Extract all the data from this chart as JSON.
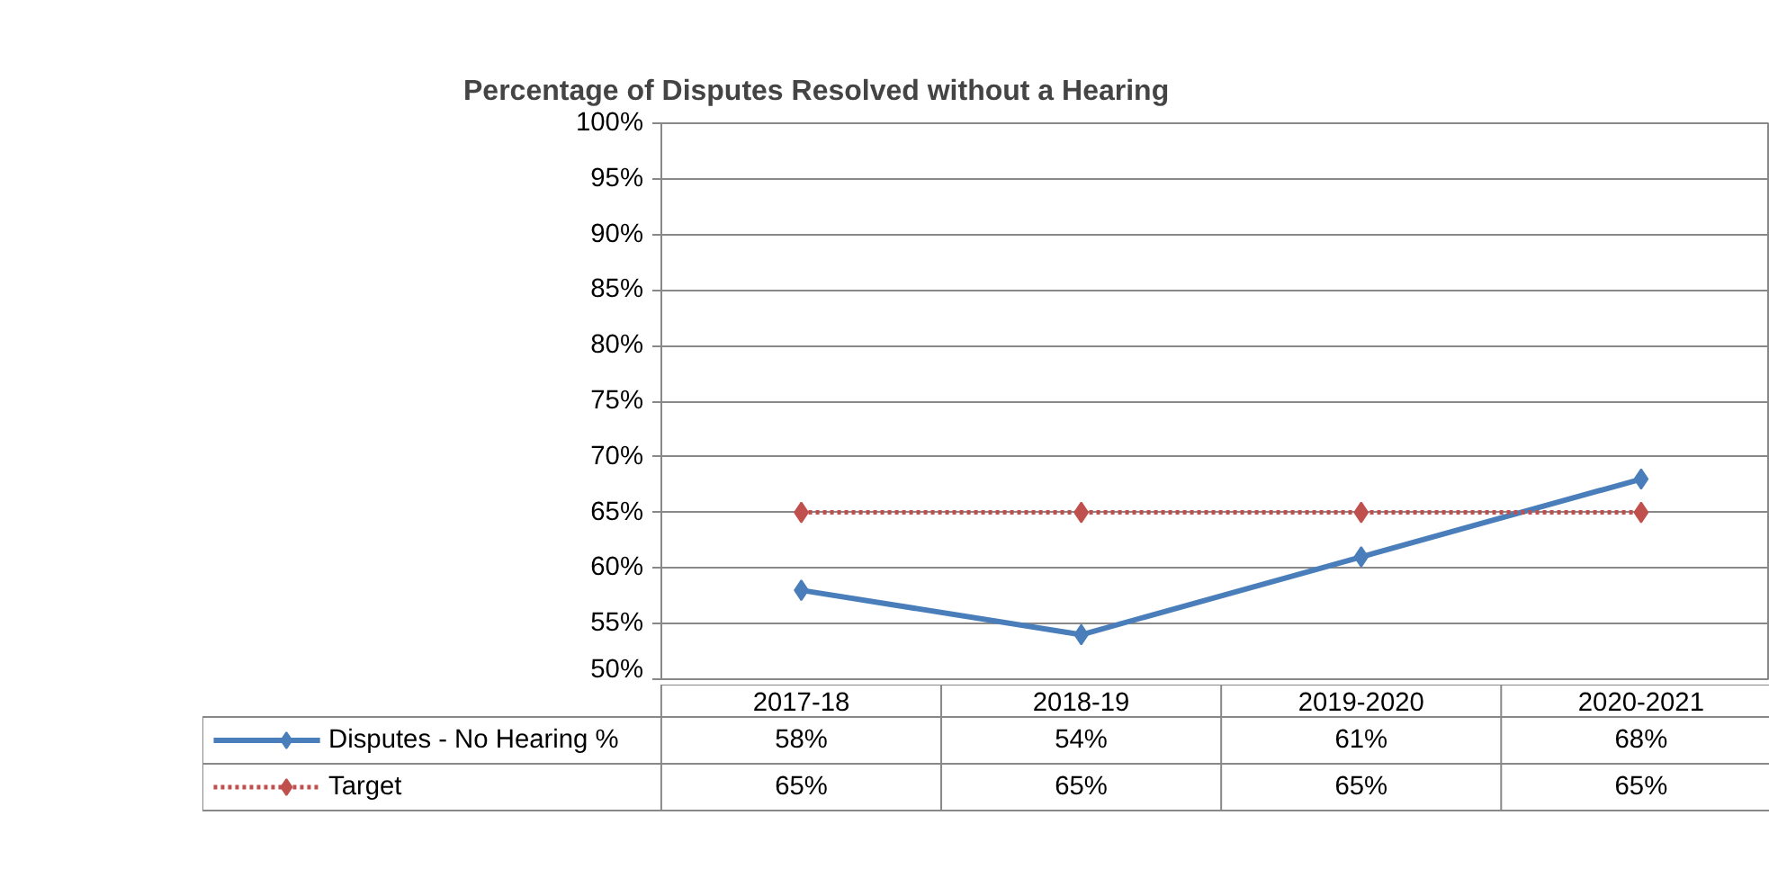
{
  "chart_data": {
    "type": "line",
    "title": "Percentage of Disputes Resolved without a Hearing",
    "categories": [
      "2017-18",
      "2018-19",
      "2019-2020",
      "2020-2021"
    ],
    "series": [
      {
        "name": "Disputes - No Hearing %",
        "color": "#4a7ebb",
        "values": [
          58,
          54,
          61,
          68
        ],
        "value_labels": [
          "58%",
          "54%",
          "61%",
          "68%"
        ],
        "line_style": "solid"
      },
      {
        "name": "Target",
        "color": "#c0504d",
        "values": [
          65,
          65,
          65,
          65
        ],
        "value_labels": [
          "65%",
          "65%",
          "65%",
          "65%"
        ],
        "line_style": "dotted"
      }
    ],
    "ylim": [
      50,
      100
    ],
    "yticks": [
      {
        "value": 50,
        "label": "50%"
      },
      {
        "value": 55,
        "label": "55%"
      },
      {
        "value": 60,
        "label": "60%"
      },
      {
        "value": 65,
        "label": "65%"
      },
      {
        "value": 70,
        "label": "70%"
      },
      {
        "value": 75,
        "label": "75%"
      },
      {
        "value": 80,
        "label": "80%"
      },
      {
        "value": 85,
        "label": "85%"
      },
      {
        "value": 90,
        "label": "90%"
      },
      {
        "value": 95,
        "label": "95%"
      },
      {
        "value": 100,
        "label": "100%"
      }
    ],
    "grid": "y",
    "legend": "bottom",
    "marker": "diamond"
  }
}
